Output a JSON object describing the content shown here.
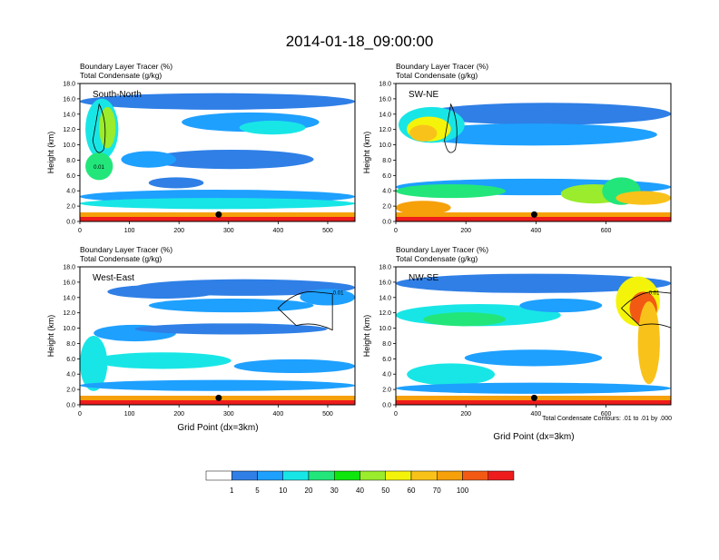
{
  "title": "2014-01-18_09:00:00",
  "colors": {
    "levels": [
      "#ffffff",
      "#2f7fe6",
      "#1ea0ff",
      "#18e6e6",
      "#22e67a",
      "#0ee60e",
      "#9aec2c",
      "#f4f40a",
      "#f9c21a",
      "#f6a00a",
      "#f25a14",
      "#ee1c1c"
    ]
  },
  "panels": [
    {
      "id": "south-north",
      "label": "South-North",
      "title1": "Boundary Layer Tracer   (%)",
      "title2": "Total Condensate   (g/kg)",
      "ylabel": "Height (km)",
      "yticks": [
        "0.0",
        "2.0",
        "4.0",
        "6.0",
        "8.0",
        "10.0",
        "12.0",
        "14.0",
        "16.0",
        "18.0"
      ],
      "xticks": [
        "0",
        "100",
        "200",
        "300",
        "400",
        "500"
      ],
      "xmax": 555,
      "marker_x": 280,
      "contour_label": "0.01"
    },
    {
      "id": "sw-ne",
      "label": "SW-NE",
      "title1": "Boundary Layer Tracer   (%)",
      "title2": "Total Condensate   (g/kg)",
      "ylabel": "Height (km)",
      "yticks": [
        "0.0",
        "2.0",
        "4.0",
        "6.0",
        "8.0",
        "10.0",
        "12.0",
        "14.0",
        "16.0",
        "18.0"
      ],
      "xticks": [
        "0",
        "200",
        "400",
        "600"
      ],
      "xmax": 785,
      "marker_x": 395,
      "contour_label": ""
    },
    {
      "id": "west-east",
      "label": "West-East",
      "title1": "Boundary Layer Tracer   (%)",
      "title2": "Total Condensate   (g/kg)",
      "ylabel": "Height (km)",
      "yticks": [
        "0.0",
        "2.0",
        "4.0",
        "6.0",
        "8.0",
        "10.0",
        "12.0",
        "14.0",
        "16.0",
        "18.0"
      ],
      "xticks": [
        "0",
        "100",
        "200",
        "300",
        "400",
        "500"
      ],
      "xmax": 555,
      "marker_x": 280,
      "contour_label": "0.01"
    },
    {
      "id": "nw-se",
      "label": "NW-SE",
      "title1": "Boundary Layer Tracer   (%)",
      "title2": "Total Condensate   (g/kg)",
      "ylabel": "Height (km)",
      "yticks": [
        "0.0",
        "2.0",
        "4.0",
        "6.0",
        "8.0",
        "10.0",
        "12.0",
        "14.0",
        "16.0",
        "18.0"
      ],
      "xticks": [
        "0",
        "200",
        "400",
        "600"
      ],
      "xmax": 785,
      "marker_x": 395,
      "contour_label": "0.01"
    }
  ],
  "xlabel": "Grid Point (dx=3km)",
  "contour_note": "Total Condensate Contours: .01 to .01 by .000",
  "legend_labels": [
    "1",
    "5",
    "10",
    "20",
    "30",
    "40",
    "50",
    "60",
    "70",
    "100"
  ],
  "chart_data": [
    {
      "type": "heatmap",
      "title": "South-North",
      "xlabel": "",
      "ylabel": "Height (km)",
      "xlim": [
        0,
        555
      ],
      "ylim": [
        0,
        18
      ],
      "fields": [
        "Boundary Layer Tracer (%)",
        "Total Condensate (g/kg)"
      ],
      "marker": {
        "x": 280,
        "y": 0.9
      }
    },
    {
      "type": "heatmap",
      "title": "SW-NE",
      "xlabel": "",
      "ylabel": "Height (km)",
      "xlim": [
        0,
        785
      ],
      "ylim": [
        0,
        18
      ],
      "fields": [
        "Boundary Layer Tracer (%)",
        "Total Condensate (g/kg)"
      ],
      "marker": {
        "x": 395,
        "y": 0.9
      }
    },
    {
      "type": "heatmap",
      "title": "West-East",
      "xlabel": "Grid Point (dx=3km)",
      "ylabel": "Height (km)",
      "xlim": [
        0,
        555
      ],
      "ylim": [
        0,
        18
      ],
      "fields": [
        "Boundary Layer Tracer (%)",
        "Total Condensate (g/kg)"
      ],
      "marker": {
        "x": 280,
        "y": 0.9
      }
    },
    {
      "type": "heatmap",
      "title": "NW-SE",
      "xlabel": "Grid Point (dx=3km)",
      "ylabel": "Height (km)",
      "xlim": [
        0,
        785
      ],
      "ylim": [
        0,
        18
      ],
      "fields": [
        "Boundary Layer Tracer (%)",
        "Total Condensate (g/kg)"
      ],
      "marker": {
        "x": 395,
        "y": 0.9
      }
    }
  ],
  "colorbar": {
    "type": "colorbar",
    "levels": [
      1,
      5,
      10,
      20,
      30,
      40,
      50,
      60,
      70,
      100
    ],
    "units": "%"
  }
}
